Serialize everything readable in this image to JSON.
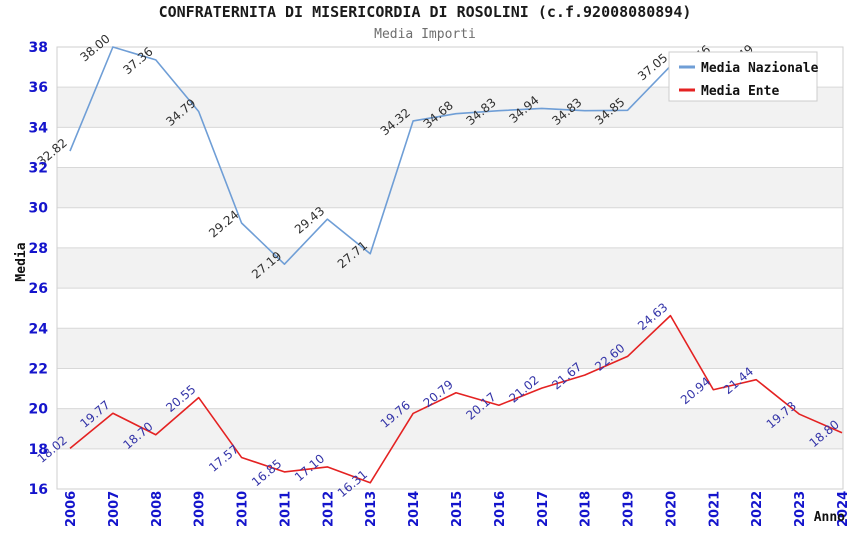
{
  "page": {
    "title": "CONFRATERNITA DI MISERICORDIA DI ROSOLINI (c.f.92008080894)",
    "subtitle": "Media Importi"
  },
  "legend": {
    "items": [
      {
        "label": "Media Nazionale",
        "color": "#6f9ed6"
      },
      {
        "label": "Media Ente",
        "color": "#e42222"
      }
    ]
  },
  "chart_data": {
    "type": "line",
    "title": "CONFRATERNITA DI MISERICORDIA DI ROSOLINI (c.f.92008080894)",
    "subtitle": "Media Importi",
    "xlabel": "Anno",
    "ylabel": "Media",
    "ylim": [
      16,
      38
    ],
    "yticks": [
      16,
      18,
      20,
      22,
      24,
      26,
      28,
      30,
      32,
      34,
      36,
      38
    ],
    "grid": "horizontal gridlines with alternating gray/white bands",
    "legend_position": "top-right",
    "axis_tick_color": "#1414cc",
    "band_color": "#f2f2f2",
    "categories": [
      "2006",
      "2007",
      "2008",
      "2009",
      "2010",
      "2011",
      "2012",
      "2013",
      "2014",
      "2015",
      "2016",
      "2017",
      "2018",
      "2019",
      "2020",
      "2021",
      "2022",
      "2023",
      "2024"
    ],
    "series": [
      {
        "name": "Media Nazionale",
        "color": "#6f9ed6",
        "label_color": "#2f2f2f",
        "values": [
          32.82,
          38.0,
          37.36,
          34.79,
          29.24,
          27.19,
          29.43,
          27.71,
          34.32,
          34.68,
          34.83,
          34.94,
          34.83,
          34.85,
          37.05,
          37.46,
          37.49,
          null,
          null
        ]
      },
      {
        "name": "Media Ente",
        "color": "#e42222",
        "label_color": "#3434a8",
        "values": [
          18.02,
          19.77,
          18.7,
          20.55,
          17.57,
          16.85,
          17.1,
          16.31,
          19.76,
          20.79,
          20.17,
          21.02,
          21.67,
          22.6,
          24.63,
          20.94,
          21.44,
          19.73,
          18.8
        ]
      }
    ]
  }
}
